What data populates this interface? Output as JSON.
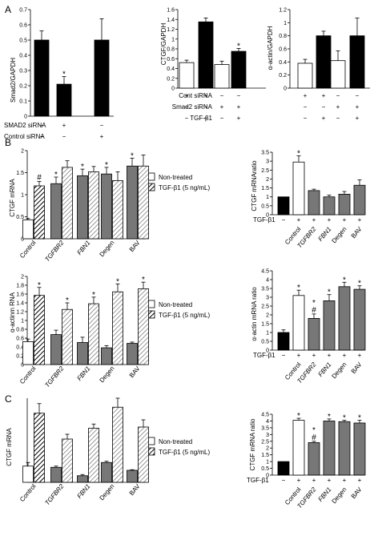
{
  "panels": {
    "A": {
      "letter": "A",
      "smad2": {
        "ylabel": "Smad2/GAPDH",
        "ylim": [
          0,
          0.7
        ],
        "ticks": [
          "0",
          "0.1",
          "0.2",
          "0.3",
          "0.4",
          "0.5",
          "0.6",
          "0.7"
        ],
        "rows": [
          {
            "label": "SMAD2 siRNA",
            "marks": [
              "−",
              "+",
              "−"
            ]
          },
          {
            "label": "Control siRNA",
            "marks": [
              "−",
              "−",
              "+"
            ]
          }
        ]
      },
      "ctgf": {
        "ylabel": "CTGF/GAPDH",
        "ylim": [
          0,
          1.6
        ],
        "ticks": [
          "0",
          "0.2",
          "0.4",
          "0.6",
          "0.8",
          "1",
          "1.2",
          "1.4",
          "1.6"
        ],
        "rows": [
          {
            "label": "Cont siRNA",
            "marks": [
              "+",
              "+",
              "−",
              "−"
            ]
          },
          {
            "label": "Smad2 siRNA",
            "marks": [
              "−",
              "−",
              "+",
              "+"
            ]
          },
          {
            "label": "TGF-β1",
            "marks": [
              "−",
              "+",
              "−",
              "+"
            ]
          }
        ]
      },
      "actin": {
        "ylabel": "α-actin/GAPDH",
        "ylim": [
          0,
          1.2
        ],
        "ticks": [
          "0",
          "0.2",
          "0.4",
          "0.6",
          "0.8",
          "1",
          "1.2"
        ],
        "rows": [
          {
            "marks": [
              "+",
              "+",
              "−",
              "−"
            ]
          },
          {
            "marks": [
              "−",
              "−",
              "+",
              "+"
            ]
          },
          {
            "marks": [
              "−",
              "+",
              "−",
              "+"
            ]
          }
        ]
      }
    },
    "B": {
      "letter": "B",
      "ctgf": {
        "ylabel": "CTGF mRNA",
        "ylim": [
          0,
          2
        ],
        "ticks": [
          "0",
          "0.5",
          "1",
          "1.5",
          "2"
        ]
      },
      "ctgf_ratio": {
        "ylabel": "CTGF mRNAratio",
        "ylim": [
          0,
          3.5
        ],
        "ticks": [
          "0",
          "0.5",
          "1",
          "1.5",
          "2",
          "2.5",
          "3",
          "3.5"
        ],
        "tgf_label": "TGF-β1",
        "marks": [
          "−",
          "+",
          "+",
          "+",
          "+",
          "+"
        ]
      },
      "actin": {
        "ylabel": "α-actinm RNA",
        "ylim": [
          0,
          2
        ],
        "ticks": [
          "0",
          "0.2",
          "0.4",
          "0.6",
          "0.8",
          "1",
          "1.2",
          "1.4",
          "1.6",
          "1.8",
          "2"
        ]
      },
      "actin_ratio": {
        "ylabel": "α-actin mRNA ratio",
        "ylim": [
          0,
          4.5
        ],
        "ticks": [
          "0",
          "0.5",
          "1",
          "1.5",
          "2",
          "2.5",
          "3",
          "3.5",
          "4",
          "4.5"
        ],
        "tgf_label": "TGF-β1",
        "marks": [
          "−",
          "+",
          "+",
          "+",
          "+",
          "+"
        ]
      }
    },
    "C": {
      "letter": "C",
      "ctgf": {
        "ylabel": "CTGF mRNA"
      },
      "ctgf_ratio": {
        "ylabel": "CTGF mRNA ratio",
        "ylim": [
          0,
          4.5
        ],
        "ticks": [
          "0",
          "0.5",
          "1",
          "1.5",
          "2",
          "2.5",
          "3",
          "3.5",
          "4",
          "4.5"
        ],
        "tgf_label": "TGF-β1",
        "marks": [
          "−",
          "+",
          "+",
          "+",
          "+",
          "+"
        ]
      }
    },
    "legend": {
      "non_treated": "Non-treated",
      "tgf": "TGF-β1 (5 ng/mL)"
    },
    "categories": [
      "Control",
      "TGFBR2",
      "FBN1",
      "Degen",
      "BAV"
    ],
    "ratio_categories": [
      "Control",
      "TGFBR2",
      "FBN1",
      "Degen",
      "BAV"
    ]
  },
  "chart_data": [
    {
      "panel": "A",
      "type": "bar",
      "ylabel": "Smad2/GAPDH",
      "ylim": [
        0,
        0.7
      ],
      "categories": [
        "SMAD2 siRNA − / Control siRNA −",
        "SMAD2 siRNA + / Control siRNA −",
        "SMAD2 siRNA − / Control siRNA +"
      ],
      "values": [
        0.5,
        0.21,
        0.5
      ],
      "errors": [
        0.06,
        0.05,
        0.14
      ],
      "annotations": [
        "",
        "*",
        ""
      ]
    },
    {
      "panel": "A",
      "type": "bar",
      "ylabel": "CTGF/GAPDH",
      "ylim": [
        0,
        1.6
      ],
      "categories": [
        "Cont siRNA + / TGF-β1 −",
        "Cont siRNA + / TGF-β1 +",
        "Smad2 siRNA + / TGF-β1 −",
        "Smad2 siRNA + / TGF-β1 +"
      ],
      "values": [
        0.52,
        1.35,
        0.48,
        0.75
      ],
      "errors": [
        0.05,
        0.08,
        0.07,
        0.06
      ],
      "annotations": [
        "",
        "",
        "",
        "*"
      ]
    },
    {
      "panel": "A",
      "type": "bar",
      "ylabel": "α-actin/GAPDH",
      "ylim": [
        0,
        1.2
      ],
      "categories": [
        "Cont siRNA + / TGF-β1 −",
        "Cont siRNA + / TGF-β1 +",
        "Smad2 siRNA + / TGF-β1 −",
        "Smad2 siRNA + / TGF-β1 +"
      ],
      "values": [
        0.38,
        0.8,
        0.42,
        0.8
      ],
      "errors": [
        0.06,
        0.07,
        0.15,
        0.27
      ],
      "annotations": [
        "",
        "",
        "",
        ""
      ]
    },
    {
      "panel": "B",
      "type": "bar",
      "ylabel": "CTGF mRNA",
      "ylim": [
        0,
        2
      ],
      "categories": [
        "Control",
        "TGFBR2",
        "FBN1",
        "Degen",
        "BAV"
      ],
      "series": [
        {
          "name": "Non-treated",
          "values": [
            0.43,
            1.25,
            1.43,
            1.47,
            1.65
          ],
          "errors": [
            0.03,
            0.15,
            0.15,
            0.15,
            0.18
          ],
          "annotations": [
            "",
            "*",
            "*",
            "*",
            "*"
          ]
        },
        {
          "name": "TGF-β1 (5 ng/mL)",
          "values": [
            1.2,
            1.62,
            1.52,
            1.32,
            1.65
          ],
          "errors": [
            0.1,
            0.15,
            0.12,
            0.2,
            0.25
          ],
          "annotations": [
            "#",
            "",
            "",
            "",
            ""
          ]
        }
      ]
    },
    {
      "panel": "B",
      "type": "bar",
      "ylabel": "CTGF mRNAratio",
      "ylim": [
        0,
        3.5
      ],
      "categories": [
        "Control",
        "Control",
        "TGFBR2",
        "FBN1",
        "Degen",
        "BAV"
      ],
      "tgf_b1": [
        "−",
        "+",
        "+",
        "+",
        "+",
        "+"
      ],
      "values": [
        1.0,
        2.95,
        1.35,
        1.0,
        1.15,
        1.65
      ],
      "errors": [
        0,
        0.35,
        0.08,
        0.1,
        0.15,
        0.3
      ],
      "annotations": [
        "",
        "*",
        "",
        "",
        "",
        ""
      ]
    },
    {
      "panel": "B",
      "type": "bar",
      "ylabel": "α-actinm RNA",
      "ylim": [
        0,
        2
      ],
      "categories": [
        "Control",
        "TGFBR2",
        "FBN1",
        "Degen",
        "BAV"
      ],
      "series": [
        {
          "name": "Non-treated",
          "values": [
            0.52,
            0.68,
            0.5,
            0.38,
            0.48
          ],
          "errors": [
            0.06,
            0.1,
            0.12,
            0.05,
            0.03
          ],
          "annotations": [
            "",
            "",
            "",
            "",
            ""
          ]
        },
        {
          "name": "TGF-β1 (5 ng/mL)",
          "values": [
            1.57,
            1.25,
            1.38,
            1.65,
            1.72
          ],
          "errors": [
            0.18,
            0.15,
            0.15,
            0.18,
            0.15
          ],
          "annotations": [
            "*",
            "*",
            "*",
            "*",
            "*"
          ]
        }
      ]
    },
    {
      "panel": "B",
      "type": "bar",
      "ylabel": "α-actin mRNA ratio",
      "ylim": [
        0,
        4.5
      ],
      "categories": [
        "Control",
        "Control",
        "TGFBR2",
        "FBN1",
        "Degen",
        "BAV"
      ],
      "tgf_b1": [
        "−",
        "+",
        "+",
        "+",
        "+",
        "+"
      ],
      "values": [
        1.0,
        3.1,
        1.8,
        2.8,
        3.6,
        3.45
      ],
      "errors": [
        0.15,
        0.3,
        0.25,
        0.35,
        0.25,
        0.2
      ],
      "annotations": [
        "",
        "*",
        "*#",
        "*",
        "*",
        "*"
      ]
    },
    {
      "panel": "C",
      "type": "bar",
      "ylabel": "CTGF mRNA",
      "categories": [
        "Control",
        "TGFBR2",
        "FBN1",
        "Degen",
        "BAV"
      ],
      "series": [
        {
          "name": "Non-treated",
          "values": [
            0.27,
            0.25,
            0.11,
            0.33,
            0.2
          ],
          "errors": [
            0.06,
            0.02,
            0.02,
            0.02,
            0.01
          ]
        },
        {
          "name": "TGF-β1 (5 ng/mL)",
          "values": [
            1.15,
            0.72,
            0.9,
            1.25,
            0.92
          ],
          "errors": [
            0.16,
            0.08,
            0.07,
            0.15,
            0.12
          ]
        }
      ]
    },
    {
      "panel": "C",
      "type": "bar",
      "ylabel": "CTGF mRNA ratio",
      "ylim": [
        0,
        4.5
      ],
      "categories": [
        "Control",
        "Control",
        "TGFBR2",
        "FBN1",
        "Degen",
        "BAV"
      ],
      "tgf_b1": [
        "−",
        "+",
        "+",
        "+",
        "+",
        "+"
      ],
      "values": [
        1.0,
        4.05,
        2.4,
        4.0,
        3.95,
        3.85
      ],
      "errors": [
        0,
        0.15,
        0.1,
        0.15,
        0.1,
        0.2
      ],
      "annotations": [
        "",
        "*",
        "*#",
        "*",
        "*",
        "*"
      ]
    }
  ]
}
